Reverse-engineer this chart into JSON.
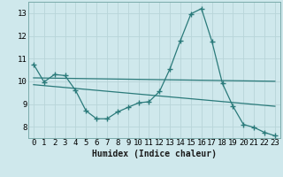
{
  "xlabel": "Humidex (Indice chaleur)",
  "bg_color": "#cfe8ec",
  "grid_color": "#b8d4d8",
  "line_color": "#2a7a7a",
  "xlim": [
    -0.5,
    23.5
  ],
  "ylim": [
    7.5,
    13.5
  ],
  "yticks": [
    8,
    9,
    10,
    11,
    12,
    13
  ],
  "xticks": [
    0,
    1,
    2,
    3,
    4,
    5,
    6,
    7,
    8,
    9,
    10,
    11,
    12,
    13,
    14,
    15,
    16,
    17,
    18,
    19,
    20,
    21,
    22,
    23
  ],
  "line1_x": [
    0,
    1,
    2,
    3,
    4,
    5,
    6,
    7,
    8,
    9,
    10,
    11,
    12,
    13,
    14,
    15,
    16,
    17,
    18,
    19,
    20,
    21,
    22,
    23
  ],
  "line1_y": [
    10.75,
    9.97,
    10.3,
    10.25,
    9.6,
    8.7,
    8.35,
    8.35,
    8.65,
    8.85,
    9.05,
    9.1,
    9.55,
    10.55,
    11.8,
    12.97,
    13.2,
    11.75,
    9.9,
    8.9,
    8.1,
    7.97,
    7.75,
    7.6
  ],
  "line2_x": [
    0,
    23
  ],
  "line2_y": [
    10.15,
    10.0
  ],
  "line3_x": [
    0,
    23
  ],
  "line3_y": [
    9.85,
    8.9
  ]
}
